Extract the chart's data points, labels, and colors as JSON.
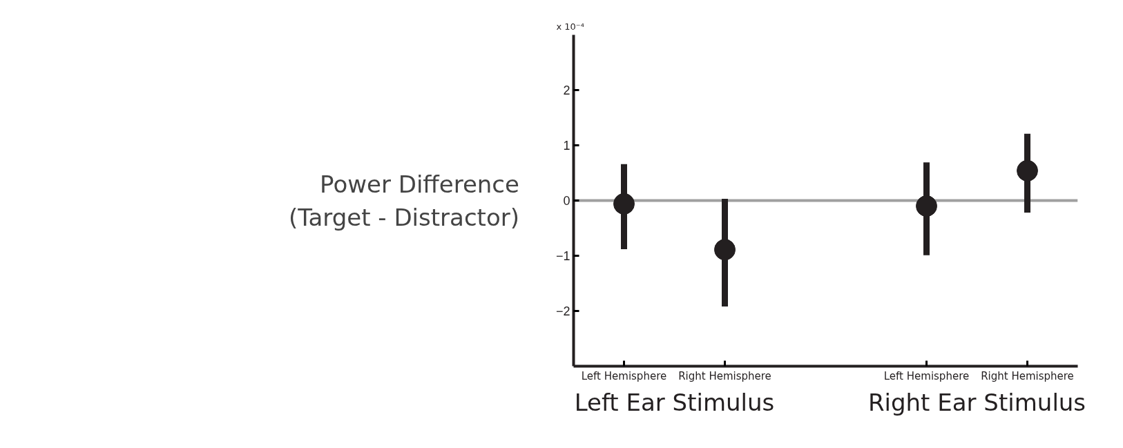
{
  "chart_data": {
    "type": "scatter",
    "ylabel": "Power Difference\n(Target - Distractor)",
    "categories": [
      "Left Hemisphere",
      "Right Hemisphere",
      null,
      "Left Hemisphere",
      "Right Hemisphere"
    ],
    "values": [
      -0.06,
      -0.89,
      null,
      -0.1,
      0.54
    ],
    "errors": [
      [
        -0.88,
        0.66
      ],
      [
        -1.92,
        0.03
      ],
      null,
      [
        -0.99,
        0.69
      ],
      [
        -0.22,
        1.21
      ]
    ],
    "color": "#231f20",
    "marker": "circle",
    "ylim": [
      -3,
      3
    ],
    "yticks": [
      -2,
      -1,
      0,
      1,
      2
    ],
    "ref_lines": [
      {
        "axis": "y",
        "value": 0,
        "color": "#a0a0a0"
      }
    ],
    "annotations": [
      "x 10⁻⁴",
      "Left Ear Stimulus",
      "Right Ear Stimulus"
    ],
    "grid": false
  }
}
